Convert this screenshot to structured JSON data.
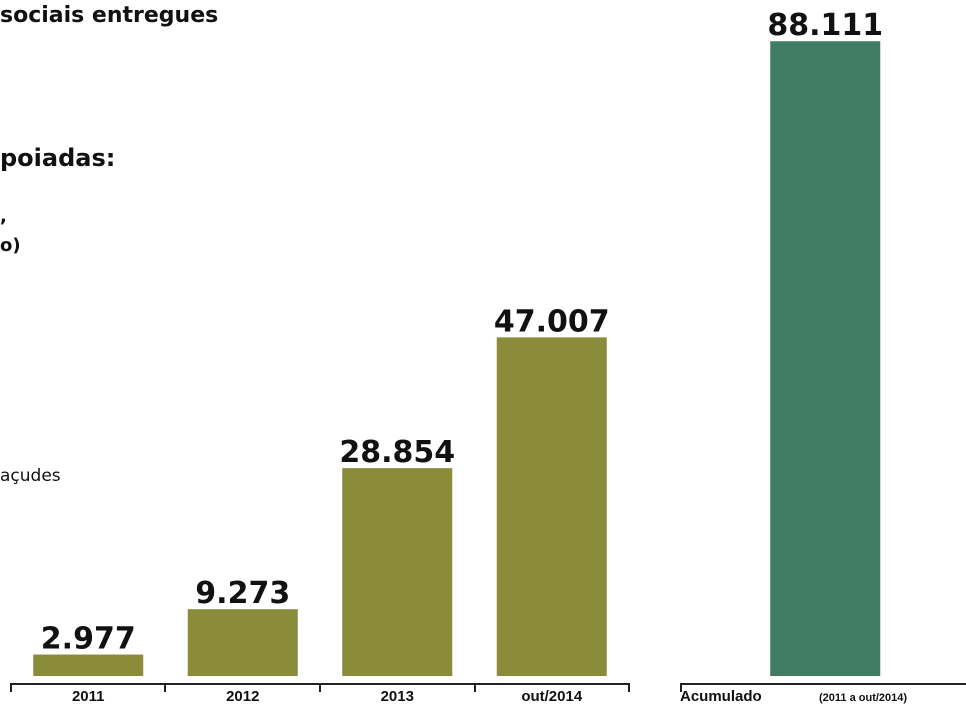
{
  "chart_data": [
    {
      "type": "bar",
      "title": "sociais entregues",
      "annotations": [
        "poiadas:",
        ",",
        "o)",
        "açudes"
      ],
      "categories": [
        "2011",
        "2012",
        "2013",
        "out/2014"
      ],
      "values": [
        2977,
        9273,
        28854,
        47007
      ],
      "value_labels": [
        "2.977",
        "9.273",
        "28.854",
        "47.007"
      ],
      "color": "#8a8c3a",
      "ylim": [
        0,
        93000
      ]
    },
    {
      "type": "bar",
      "categories": [
        "Acumulado"
      ],
      "category_note": "(2011 a out/2014)",
      "values": [
        88111
      ],
      "value_labels": [
        "88.111"
      ],
      "color": "#417d64",
      "ylim": [
        0,
        93000
      ]
    }
  ]
}
